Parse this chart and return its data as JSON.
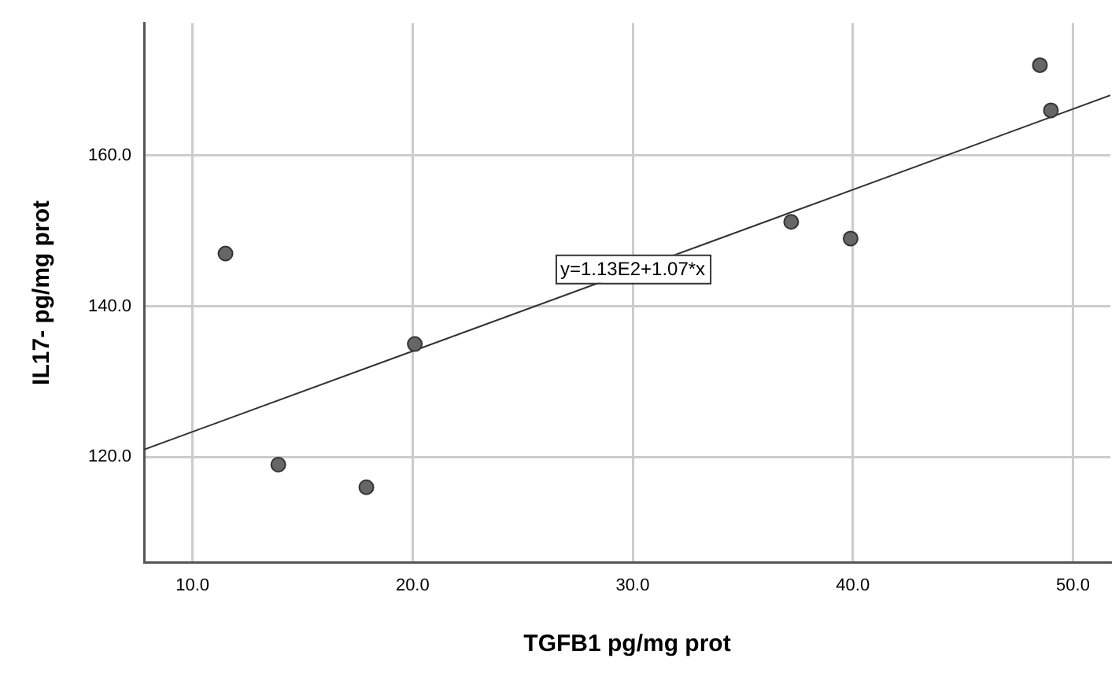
{
  "chart_data": {
    "type": "scatter",
    "xlabel": "TGFB1 pg/mg prot",
    "ylabel": "IL17- pg/mg prot",
    "xlim": [
      7.8,
      51.7
    ],
    "ylim": [
      106,
      177.6
    ],
    "xticks": [
      {
        "value": 10,
        "label": "10.0"
      },
      {
        "value": 20,
        "label": "20.0"
      },
      {
        "value": 30,
        "label": "30.0"
      },
      {
        "value": 40,
        "label": "40.0"
      },
      {
        "value": 50,
        "label": "50.0"
      }
    ],
    "yticks": [
      {
        "value": 120,
        "label": "120.0"
      },
      {
        "value": 140,
        "label": "140.0"
      },
      {
        "value": 160,
        "label": "160.0"
      }
    ],
    "grid": true,
    "legend": false,
    "marker": "circle",
    "series": [
      {
        "type": "scatter",
        "color": "#666666",
        "x": [
          11.5,
          13.9,
          17.9,
          20.1,
          37.2,
          39.9,
          48.5,
          49.0
        ],
        "values": [
          147.0,
          119.0,
          116.0,
          135.0,
          151.2,
          149.0,
          172.0,
          166.0
        ]
      },
      {
        "type": "line",
        "color": "#333333",
        "marker": "none",
        "x": [
          7.8,
          51.7
        ],
        "values": [
          121.0,
          168.0
        ]
      }
    ],
    "annotations": [
      {
        "text": "y=1.13E2+1.07*x",
        "x": 30,
        "y": 145
      }
    ]
  }
}
